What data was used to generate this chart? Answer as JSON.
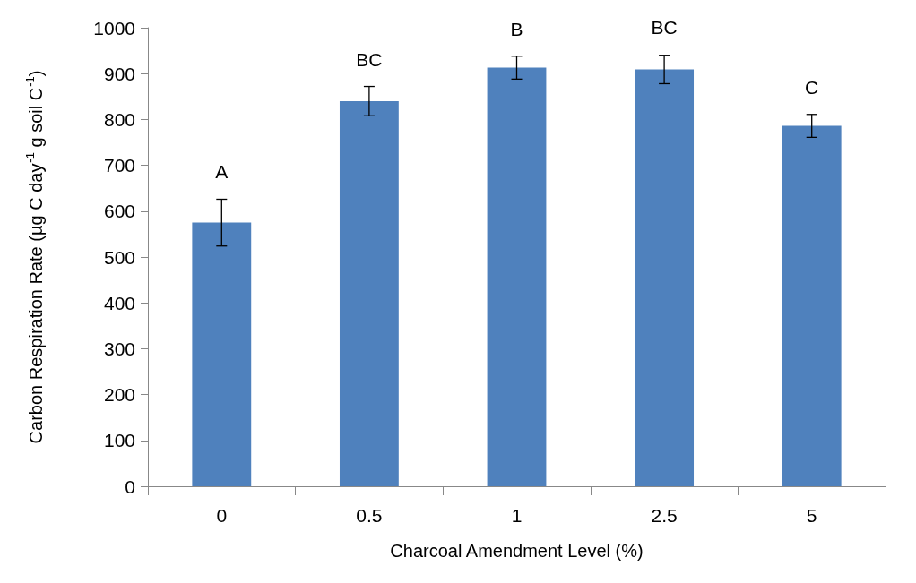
{
  "chart_data": {
    "type": "bar",
    "xlabel": "Charcoal Amendment Level (%)",
    "ylabel": "Carbon Respiration Rate (µg C day$^{-1}$ g soil C$^{-1}$)",
    "categories": [
      "0",
      "0.5",
      "1",
      "2.5",
      "5"
    ],
    "values": [
      575,
      840,
      913,
      909,
      786
    ],
    "errors": [
      51,
      32,
      25,
      31,
      25
    ],
    "color": "#4f81bd",
    "ylim": [
      0,
      1000
    ],
    "yticks": [
      0,
      100,
      200,
      300,
      400,
      500,
      600,
      700,
      800,
      900,
      1000
    ],
    "grid": false,
    "annotations": [
      {
        "text": "A",
        "x": "0",
        "y": 627
      },
      {
        "text": "BC",
        "x": "0.5",
        "y": 872
      },
      {
        "text": "B",
        "x": "1",
        "y": 938
      },
      {
        "text": "BC",
        "x": "2.5",
        "y": 941
      },
      {
        "text": "C",
        "x": "5",
        "y": 811
      }
    ]
  }
}
